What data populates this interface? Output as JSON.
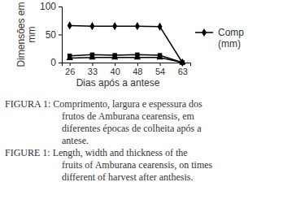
{
  "chart_data": {
    "type": "line",
    "y_label": "Dimensões em mm",
    "x_label": "Dias após a antese",
    "categories": [
      "26",
      "33",
      "40",
      "48",
      "54",
      "63"
    ],
    "series": [
      {
        "name": "Comp (mm)",
        "color": "#000000",
        "marker": "diamond",
        "values": [
          66,
          65,
          65,
          65,
          64,
          0
        ]
      },
      {
        "color": "#000000",
        "marker": "square",
        "values": [
          12,
          14,
          13,
          14,
          13,
          0
        ]
      },
      {
        "color": "#000000",
        "marker": "triangle",
        "values": [
          8,
          9,
          9,
          9,
          9,
          0
        ]
      }
    ],
    "ylim": [
      0,
      100
    ],
    "yticks": [
      0,
      50,
      100
    ],
    "grid": false,
    "legend": "right",
    "annotations": [
      [
        "FIGURA 1: Comprimento, largura e espessura dos",
        "frutos de Amburana cearensis, em",
        "diferentes épocas de colheita após a",
        "antese."
      ],
      [
        "FIGURE 1: Length, width and thickness of the",
        "fruits of Amburana cearensis, on times",
        "different of harvest after anthesis."
      ]
    ]
  }
}
